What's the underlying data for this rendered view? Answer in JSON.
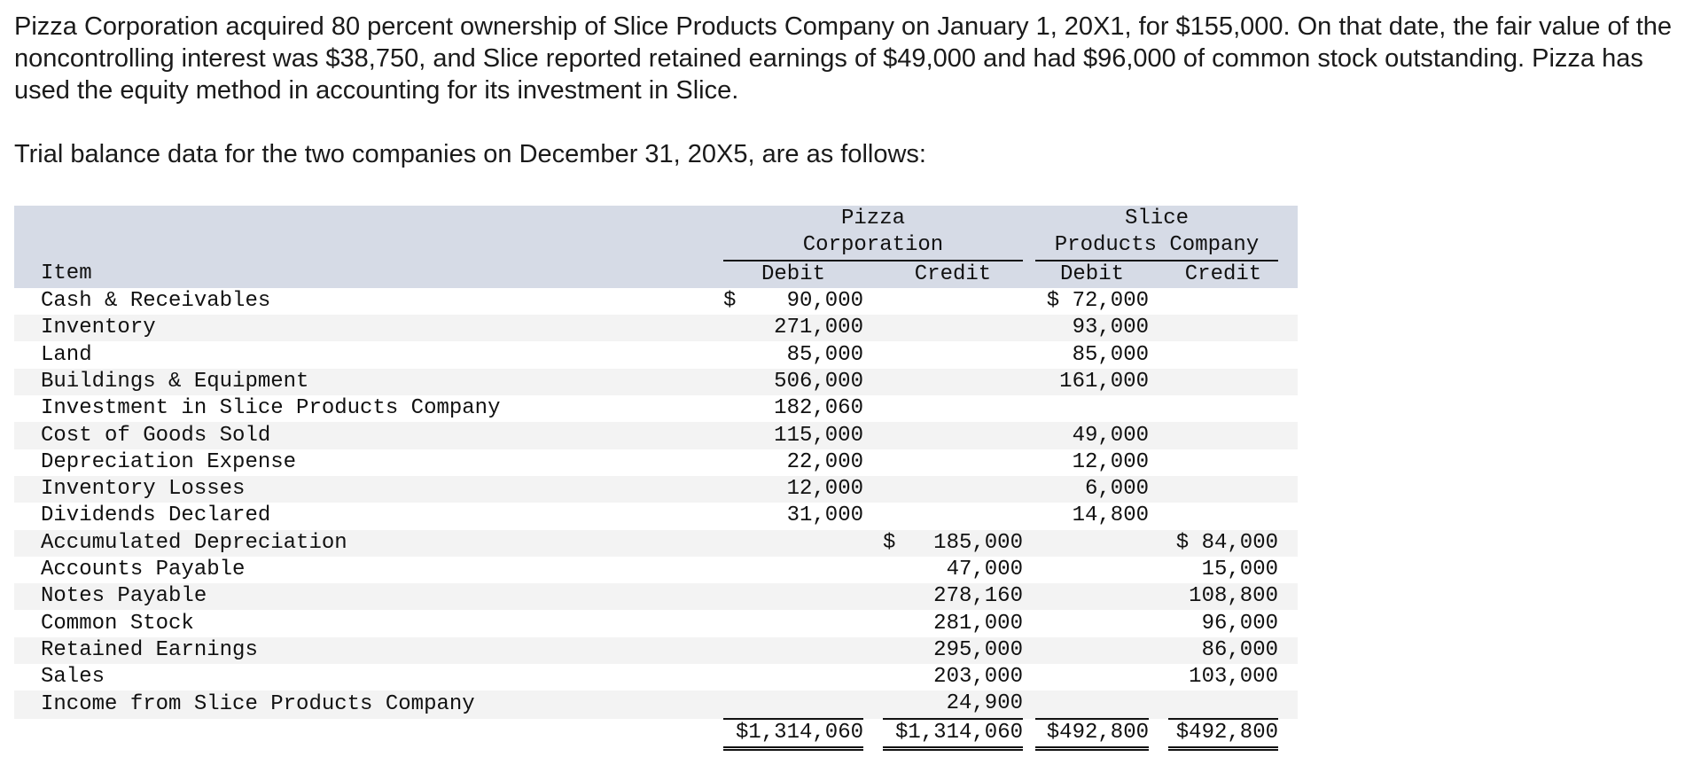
{
  "intro": {
    "paragraph1": "Pizza Corporation acquired 80 percent ownership of Slice Products Company on January 1, 20X1, for $155,000. On that date, the fair value of the noncontrolling interest was $38,750, and Slice reported retained earnings of $49,000 and had $96,000 of common stock outstanding. Pizza has used the equity method in accounting for its investment in Slice.",
    "paragraph2": "Trial balance data for the two companies on December 31, 20X5, are as follows:"
  },
  "table": {
    "headers": {
      "item": "Item",
      "pizza_line1": "Pizza",
      "pizza_line2": "Corporation",
      "slice_line1": "Slice",
      "slice_line2": "Products Company",
      "debit": "Debit",
      "credit": "Credit"
    },
    "rows": [
      {
        "item": "Cash & Receivables",
        "pd_sign": "$",
        "pd": "90,000",
        "pc_sign": "",
        "pc": "",
        "sd": "$ 72,000",
        "sc": ""
      },
      {
        "item": "Inventory",
        "pd_sign": "",
        "pd": "271,000",
        "pc_sign": "",
        "pc": "",
        "sd": "93,000",
        "sc": ""
      },
      {
        "item": "Land",
        "pd_sign": "",
        "pd": "85,000",
        "pc_sign": "",
        "pc": "",
        "sd": "85,000",
        "sc": ""
      },
      {
        "item": "Buildings & Equipment",
        "pd_sign": "",
        "pd": "506,000",
        "pc_sign": "",
        "pc": "",
        "sd": "161,000",
        "sc": ""
      },
      {
        "item": "Investment in Slice Products Company",
        "pd_sign": "",
        "pd": "182,060",
        "pc_sign": "",
        "pc": "",
        "sd": "",
        "sc": ""
      },
      {
        "item": "Cost of Goods Sold",
        "pd_sign": "",
        "pd": "115,000",
        "pc_sign": "",
        "pc": "",
        "sd": "49,000",
        "sc": ""
      },
      {
        "item": "Depreciation Expense",
        "pd_sign": "",
        "pd": "22,000",
        "pc_sign": "",
        "pc": "",
        "sd": "12,000",
        "sc": ""
      },
      {
        "item": "Inventory Losses",
        "pd_sign": "",
        "pd": "12,000",
        "pc_sign": "",
        "pc": "",
        "sd": "6,000",
        "sc": ""
      },
      {
        "item": "Dividends Declared",
        "pd_sign": "",
        "pd": "31,000",
        "pc_sign": "",
        "pc": "",
        "sd": "14,800",
        "sc": ""
      },
      {
        "item": "Accumulated Depreciation",
        "pd_sign": "",
        "pd": "",
        "pc_sign": "$",
        "pc": "185,000",
        "sd": "",
        "sc": "$ 84,000"
      },
      {
        "item": "Accounts Payable",
        "pd_sign": "",
        "pd": "",
        "pc_sign": "",
        "pc": "47,000",
        "sd": "",
        "sc": "15,000"
      },
      {
        "item": "Notes Payable",
        "pd_sign": "",
        "pd": "",
        "pc_sign": "",
        "pc": "278,160",
        "sd": "",
        "sc": "108,800"
      },
      {
        "item": "Common Stock",
        "pd_sign": "",
        "pd": "",
        "pc_sign": "",
        "pc": "281,000",
        "sd": "",
        "sc": "96,000"
      },
      {
        "item": "Retained Earnings",
        "pd_sign": "",
        "pd": "",
        "pc_sign": "",
        "pc": "295,000",
        "sd": "",
        "sc": "86,000"
      },
      {
        "item": "Sales",
        "pd_sign": "",
        "pd": "",
        "pc_sign": "",
        "pc": "203,000",
        "sd": "",
        "sc": "103,000"
      },
      {
        "item": "Income from Slice Products Company",
        "pd_sign": "",
        "pd": "",
        "pc_sign": "",
        "pc": "24,900",
        "sd": "",
        "sc": ""
      }
    ],
    "totals": {
      "pd": "$1,314,060",
      "pc": "$1,314,060",
      "sd": "$492,800",
      "sc": "$492,800"
    }
  }
}
